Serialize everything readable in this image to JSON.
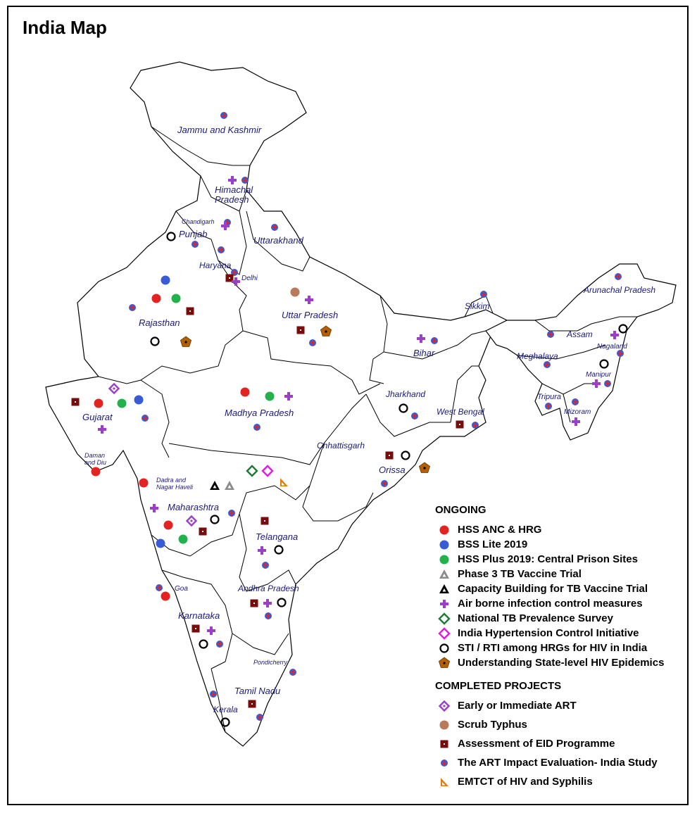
{
  "title": "India Map",
  "colors": {
    "red": "#e52222",
    "blue": "#3a5bd6",
    "green": "#22b24c",
    "gray": "#8c8c8c",
    "black": "#000000",
    "purple": "#9b3fc7",
    "darkgreen": "#1e7a33",
    "magenta": "#e619e6",
    "orange": "#e07c10",
    "brown_pent": "#b35f05",
    "tan": "#b87a5a",
    "maroon": "#7a0b0b",
    "label": "#1a1a7a"
  },
  "states": {
    "jk": "Jammu and Kashmir",
    "hp": "Himachal Pradesh",
    "chandigarh": "Chandigarh",
    "punjab": "Punjab",
    "uttarakhand": "Uttarakhand",
    "haryana": "Haryana",
    "delhi": "Delhi",
    "rajasthan": "Rajasthan",
    "up": "Uttar Pradesh",
    "bihar": "Bihar",
    "sikkim": "Sikkim",
    "arunachal": "Arunachal Pradesh",
    "assam": "Assam",
    "nagaland": "Nagaland",
    "meghalaya": "Meghalaya",
    "manipur": "Manipur",
    "tripura": "Tripura",
    "mizoram": "Mizoram",
    "gujarat": "Gujarat",
    "mp": "Madhya Pradesh",
    "jharkhand": "Jharkhand",
    "wb": "West Bengal",
    "chhattisgarh": "Chhattisgarh",
    "orissa": "Orissa",
    "daman": "Daman and Diu",
    "dadra": "Dadra and Nagar Haveli",
    "maharashtra": "Maharashtra",
    "telangana": "Telangana",
    "goa": "Goa",
    "ap": "Andhra Pradesh",
    "karnataka": "Karnataka",
    "pondicherry": "Pondicherry",
    "tn": "Tamil Nadu",
    "kerala": "Kerala"
  },
  "legend": {
    "ongoing_title": "ONGOING",
    "ongoing": [
      {
        "symbol": "red-circle",
        "label": "HSS ANC & HRG"
      },
      {
        "symbol": "blue-circle",
        "label": "BSS Lite 2019"
      },
      {
        "symbol": "green-circle",
        "label": "HSS Plus 2019: Central Prison Sites"
      },
      {
        "symbol": "gray-triangle",
        "label": "Phase 3 TB Vaccine Trial"
      },
      {
        "symbol": "black-triangle",
        "label": "Capacity Building for TB Vaccine Trial"
      },
      {
        "symbol": "purple-cross",
        "label": "Air borne infection control measures"
      },
      {
        "symbol": "green-diamond",
        "label": "National TB Prevalence Survey"
      },
      {
        "symbol": "magenta-diamond",
        "label": "India Hypertension Control Initiative"
      },
      {
        "symbol": "black-ring",
        "label": "STI / RTI among HRGs for HIV in India"
      },
      {
        "symbol": "brown-pentagon",
        "label": "Understanding State-level HIV Epidemics"
      }
    ],
    "completed_title": "COMPLETED PROJECTS",
    "completed": [
      {
        "symbol": "purple-diamond",
        "label": "Early or Immediate ART"
      },
      {
        "symbol": "tan-circle",
        "label": "Scrub Typhus"
      },
      {
        "symbol": "maroon-square",
        "label": "Assessment of EID Programme"
      },
      {
        "symbol": "blue-cross-circle",
        "label": "The ART Impact Evaluation- India Study"
      },
      {
        "symbol": "orange-flag",
        "label": "EMTCT of HIV and Syphilis"
      }
    ]
  }
}
